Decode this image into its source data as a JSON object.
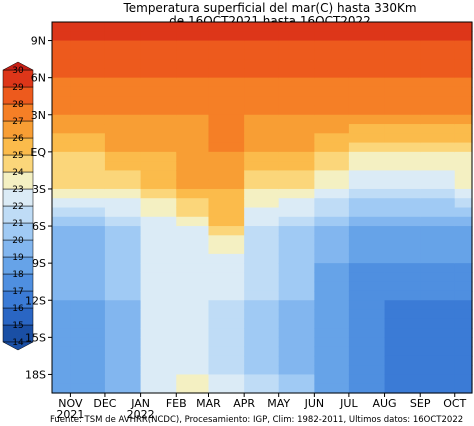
{
  "chart_data": {
    "type": "heatmap",
    "title_lines": [
      "Temperatura superficial del mar(C) hasta 330Km",
      "de 16OCT2021 hasta 16OCT2022"
    ],
    "source": "Fuente: TSM de AVHRR(NCDC), Procesamiento: IGP, Clim: 1982-2011, Ultimos datos:  16OCT2022",
    "x_axis": {
      "type": "time",
      "range": [
        "2021-10-16",
        "2022-10-16"
      ],
      "ticks": [
        {
          "date": "2021-11-01",
          "label": "NOV",
          "sub": "2021"
        },
        {
          "date": "2021-12-01",
          "label": "DEC",
          "sub": ""
        },
        {
          "date": "2022-01-01",
          "label": "JAN",
          "sub": "2022"
        },
        {
          "date": "2022-02-01",
          "label": "FEB",
          "sub": ""
        },
        {
          "date": "2022-03-01",
          "label": "MAR",
          "sub": ""
        },
        {
          "date": "2022-04-01",
          "label": "APR",
          "sub": ""
        },
        {
          "date": "2022-05-01",
          "label": "MAY",
          "sub": ""
        },
        {
          "date": "2022-06-01",
          "label": "JUN",
          "sub": ""
        },
        {
          "date": "2022-07-01",
          "label": "JUL",
          "sub": ""
        },
        {
          "date": "2022-08-01",
          "label": "AUG",
          "sub": ""
        },
        {
          "date": "2022-09-01",
          "label": "SEP",
          "sub": ""
        },
        {
          "date": "2022-10-01",
          "label": "OCT",
          "sub": ""
        }
      ]
    },
    "y_axis": {
      "unit": "latitude",
      "range": [
        -19.5,
        10.5
      ],
      "ticks": [
        {
          "value": 9,
          "label": "9N"
        },
        {
          "value": 6,
          "label": "6N"
        },
        {
          "value": 3,
          "label": "3N"
        },
        {
          "value": 0,
          "label": "EQ"
        },
        {
          "value": -3,
          "label": "3S"
        },
        {
          "value": -6,
          "label": "6S"
        },
        {
          "value": -9,
          "label": "9S"
        },
        {
          "value": -12,
          "label": "12S"
        },
        {
          "value": -15,
          "label": "15S"
        },
        {
          "value": -18,
          "label": "18S"
        }
      ]
    },
    "colorbar": {
      "levels": [
        14,
        15,
        16,
        17,
        18,
        19,
        20,
        21,
        22,
        23,
        24,
        25,
        26,
        27,
        28,
        29,
        30
      ],
      "colors": [
        "#1a4fa5",
        "#2a66c4",
        "#3b7bd6",
        "#4f8fe0",
        "#66a3e8",
        "#82b6ef",
        "#a0caf4",
        "#bfdcf6",
        "#dbebf6",
        "#f4f0c2",
        "#fbd67a",
        "#fbbb4b",
        "#f89e34",
        "#f57f26",
        "#ed5a1d",
        "#dd3619",
        "#c62016"
      ]
    },
    "latitude_profile_by_month": [
      {
        "month": "2021-10",
        "values_by_lat": {
          "9": 29,
          "6": 28,
          "3": 27,
          "0": 25,
          "-3": 24,
          "-6": 20,
          "-9": 19,
          "-12": 19,
          "-15": 18,
          "-18": 18
        }
      },
      {
        "month": "2021-11",
        "values_by_lat": {
          "9": 29,
          "6": 28,
          "3": 27,
          "0": 25,
          "-3": 24,
          "-6": 20,
          "-9": 19,
          "-12": 19,
          "-15": 18,
          "-18": 18
        }
      },
      {
        "month": "2021-12",
        "values_by_lat": {
          "9": 29,
          "6": 28,
          "3": 27,
          "0": 26,
          "-3": 24,
          "-6": 21,
          "-9": 20,
          "-12": 20,
          "-15": 19,
          "-18": 19
        }
      },
      {
        "month": "2022-01",
        "values_by_lat": {
          "9": 29,
          "6": 28,
          "3": 27,
          "0": 26,
          "-3": 25,
          "-6": 22,
          "-9": 22,
          "-12": 22,
          "-15": 22,
          "-18": 22
        }
      },
      {
        "month": "2022-02",
        "values_by_lat": {
          "9": 29,
          "6": 28,
          "3": 27,
          "0": 26,
          "-3": 26,
          "-6": 23,
          "-9": 22,
          "-12": 22,
          "-15": 22,
          "-18": 23
        }
      },
      {
        "month": "2022-03",
        "values_by_lat": {
          "9": 29,
          "6": 28,
          "3": 27,
          "0": 27,
          "-3": 26,
          "-6": 25,
          "-9": 22,
          "-12": 22,
          "-15": 21,
          "-18": 22
        }
      },
      {
        "month": "2022-04",
        "values_by_lat": {
          "9": 29,
          "6": 28,
          "3": 27,
          "0": 26,
          "-3": 24,
          "-6": 22,
          "-9": 21,
          "-12": 21,
          "-15": 20,
          "-18": 21
        }
      },
      {
        "month": "2022-05",
        "values_by_lat": {
          "9": 29,
          "6": 28,
          "3": 27,
          "0": 26,
          "-3": 24,
          "-6": 21,
          "-9": 20,
          "-12": 20,
          "-15": 19,
          "-18": 20
        }
      },
      {
        "month": "2022-06",
        "values_by_lat": {
          "9": 29,
          "6": 28,
          "3": 27,
          "0": 25,
          "-3": 23,
          "-6": 20,
          "-9": 19,
          "-12": 18,
          "-15": 18,
          "-18": 18
        }
      },
      {
        "month": "2022-07",
        "values_by_lat": {
          "9": 29,
          "6": 28,
          "3": 27,
          "0": 24,
          "-3": 22,
          "-6": 19,
          "-9": 18,
          "-12": 17,
          "-15": 17,
          "-18": 17
        }
      },
      {
        "month": "2022-08",
        "values_by_lat": {
          "9": 29,
          "6": 28,
          "3": 27,
          "0": 24,
          "-3": 22,
          "-6": 19,
          "-9": 18,
          "-12": 17,
          "-15": 16,
          "-18": 16
        }
      },
      {
        "month": "2022-09",
        "values_by_lat": {
          "9": 29,
          "6": 28,
          "3": 27,
          "0": 24,
          "-3": 22,
          "-6": 19,
          "-9": 18,
          "-12": 17,
          "-15": 16,
          "-18": 16
        }
      },
      {
        "month": "2022-10",
        "values_by_lat": {
          "9": 29,
          "6": 28,
          "3": 27,
          "0": 24,
          "-3": 23,
          "-6": 19,
          "-9": 18,
          "-12": 17,
          "-15": 16,
          "-18": 16
        }
      }
    ]
  }
}
